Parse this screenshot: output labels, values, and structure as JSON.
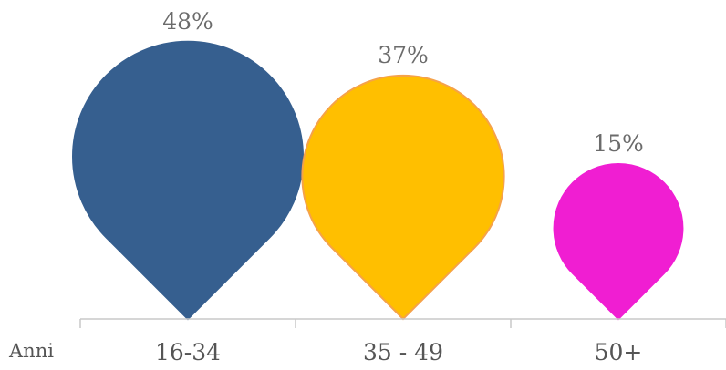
{
  "chart_data": {
    "type": "bar",
    "categories": [
      "16-34",
      "35 - 49",
      "50+"
    ],
    "values": [
      48,
      37,
      15
    ],
    "value_labels": [
      "48%",
      "37%",
      "15%"
    ],
    "xlabel": "Anni",
    "ylim": [
      0,
      48
    ],
    "grid": false,
    "legend": "none",
    "colors": [
      "#365f8f",
      "#ffbf00",
      "#f01ed2"
    ],
    "outline_colors": [
      "#365f8f",
      "#f5a24a",
      "#f01ed2"
    ]
  }
}
